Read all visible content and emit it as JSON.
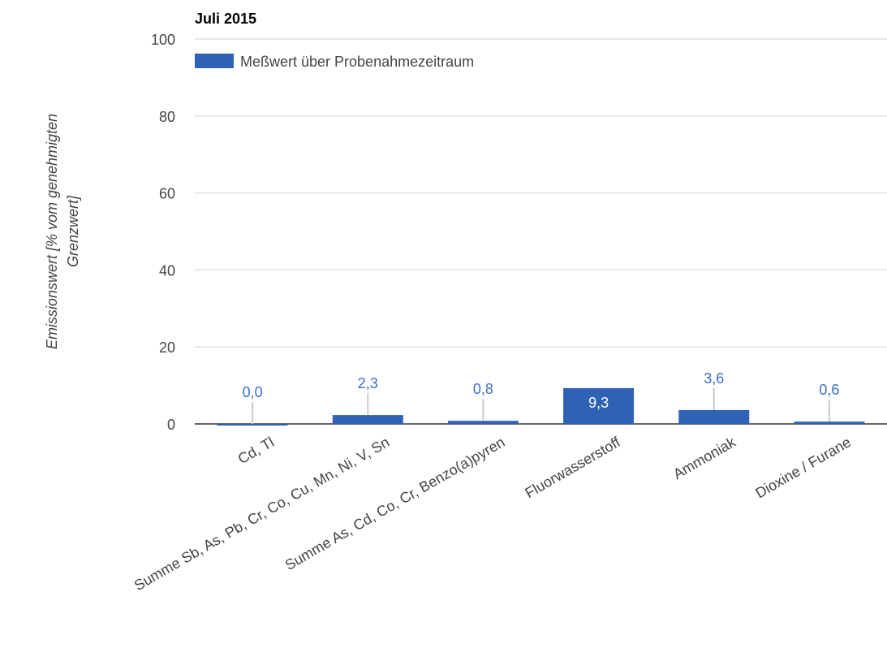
{
  "chart_data": {
    "type": "bar",
    "title": "Juli 2015",
    "y_label": [
      "Emissionswert [% vom genehmigten",
      "Grenzwert]"
    ],
    "categories": [
      "Cd, Tl",
      "Summe Sb, As, Pb, Cr, Co, Cu, Mn, Ni, V, Sn",
      "Summe As, Cd, Co, Cr, Benzo(a)pyren",
      "Fluorwasserstoff",
      "Ammoniak",
      "Dioxine / Furane"
    ],
    "series": [
      {
        "name": "Meßwert über Probenahmezeitraum",
        "color": "#2f62b4",
        "values": [
          0.0,
          2.3,
          0.8,
          9.3,
          3.6,
          0.6
        ],
        "value_labels": [
          "0,0",
          "2,3",
          "0,8",
          "9,3",
          "3,6",
          "0,6"
        ]
      }
    ],
    "ylim": [
      0,
      100
    ],
    "yticks": [
      0,
      20,
      40,
      60,
      80,
      100
    ],
    "grid": true,
    "legend": "top"
  }
}
